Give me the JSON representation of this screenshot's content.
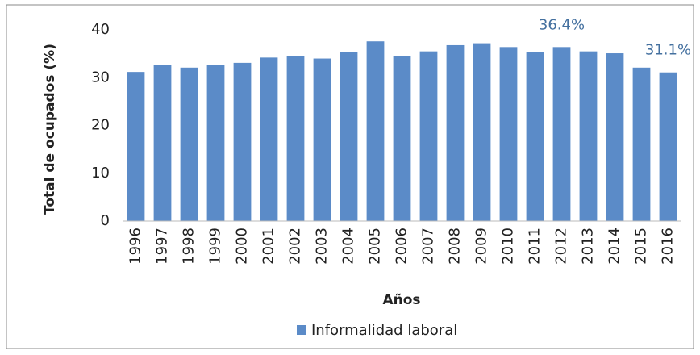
{
  "chart_data": {
    "type": "bar",
    "categories": [
      "1996",
      "1997",
      "1998",
      "1999",
      "2000",
      "2001",
      "2002",
      "2003",
      "2004",
      "2005",
      "2006",
      "2007",
      "2008",
      "2009",
      "2010",
      "2011",
      "2012",
      "2013",
      "2014",
      "2015",
      "2016"
    ],
    "series": [
      {
        "name": "Informalidad laboral",
        "color": "#5b8bc8",
        "values": [
          31.2,
          32.7,
          32.1,
          32.7,
          33.1,
          34.2,
          34.5,
          34.0,
          35.3,
          37.6,
          34.5,
          35.5,
          36.8,
          37.2,
          36.4,
          35.3,
          36.4,
          35.5,
          35.1,
          32.1,
          31.1
        ],
        "value_labels": [
          null,
          null,
          null,
          null,
          null,
          null,
          null,
          null,
          null,
          null,
          null,
          null,
          null,
          null,
          null,
          null,
          "36.4%",
          null,
          null,
          null,
          "31.1%"
        ]
      }
    ],
    "xlabel": "Años",
    "ylabel": "Total de ocupados (%)",
    "ylim": [
      0,
      40
    ],
    "yticks": [
      0,
      10,
      20,
      30,
      40
    ],
    "grid": false,
    "legend": "bottom"
  }
}
